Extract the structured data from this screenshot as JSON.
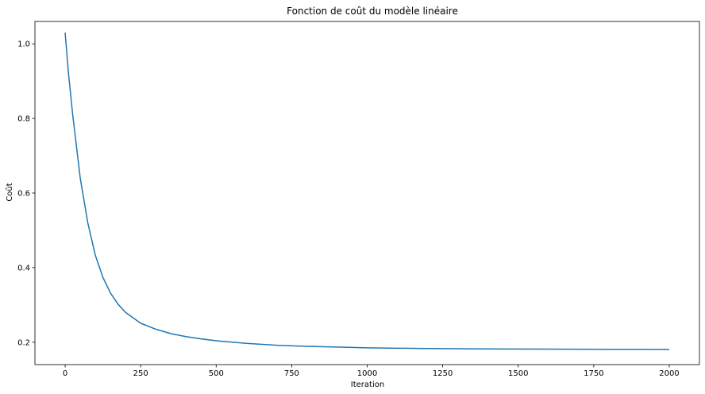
{
  "chart_data": {
    "type": "line",
    "title": "Fonction de coût du modèle linéaire",
    "xlabel": "Iteration",
    "ylabel": "Coût",
    "xlim": [
      -100,
      2100
    ],
    "ylim": [
      0.14,
      1.06
    ],
    "xticks": [
      0,
      250,
      500,
      750,
      1000,
      1250,
      1500,
      1750,
      2000
    ],
    "xtick_labels": [
      "0",
      "250",
      "500",
      "750",
      "1000",
      "1250",
      "1500",
      "1750",
      "2000"
    ],
    "yticks": [
      0.2,
      0.4,
      0.6,
      0.8,
      1.0
    ],
    "ytick_labels": [
      "0.2",
      "0.4",
      "0.6",
      "0.8",
      "1.0"
    ],
    "grid": false,
    "line_color": "#1f77b4",
    "series": [
      {
        "x": [
          0,
          10,
          25,
          50,
          75,
          100,
          125,
          150,
          175,
          200,
          250,
          300,
          350,
          400,
          450,
          500,
          600,
          700,
          800,
          900,
          1000,
          1100,
          1200,
          1300,
          1400,
          1500,
          1600,
          1700,
          1800,
          1900,
          2000
        ],
        "values": [
          1.03,
          0.93,
          0.81,
          0.64,
          0.52,
          0.433,
          0.374,
          0.332,
          0.302,
          0.28,
          0.251,
          0.235,
          0.223,
          0.215,
          0.209,
          0.204,
          0.197,
          0.192,
          0.189,
          0.187,
          0.185,
          0.184,
          0.1832,
          0.1826,
          0.1821,
          0.1817,
          0.1814,
          0.1812,
          0.181,
          0.1809,
          0.1808
        ]
      }
    ]
  }
}
